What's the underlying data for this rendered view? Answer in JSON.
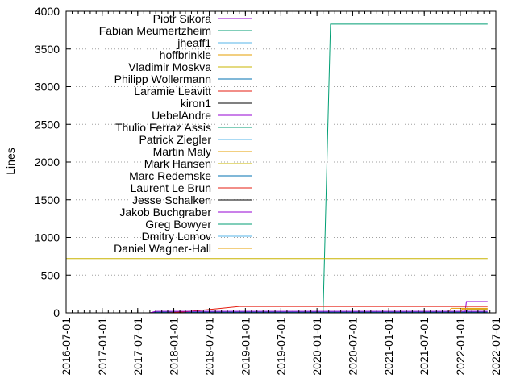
{
  "chart_data": {
    "type": "line",
    "title": "",
    "xlabel": "",
    "ylabel": "Lines",
    "ylim": [
      0,
      4000
    ],
    "xlim": [
      "2016-07-01",
      "2022-07-01"
    ],
    "yticks": [
      0,
      500,
      1000,
      1500,
      2000,
      2500,
      3000,
      3500,
      4000
    ],
    "xticks": [
      "2016-07-01",
      "2017-01-01",
      "2017-07-01",
      "2018-01-01",
      "2018-07-01",
      "2019-01-01",
      "2019-07-01",
      "2020-01-01",
      "2020-07-01",
      "2021-01-01",
      "2021-07-01",
      "2022-01-01",
      "2022-07-01"
    ],
    "grid": true,
    "legend_position": "top-left",
    "series": [
      {
        "name": "Piotr Sikora",
        "color": "#9400d3",
        "points": [
          [
            "2016-07-01",
            0
          ],
          [
            "2022-01-25",
            0
          ],
          [
            "2022-02-01",
            150
          ],
          [
            "2022-05-20",
            150
          ]
        ]
      },
      {
        "name": "Fabian Meumertzheim",
        "color": "#009e73",
        "points": [
          [
            "2016-07-01",
            0
          ],
          [
            "2020-02-01",
            0
          ],
          [
            "2020-03-10",
            3830
          ],
          [
            "2022-05-20",
            3830
          ]
        ]
      },
      {
        "name": "jheaff1",
        "color": "#56b4e9",
        "points": [
          [
            "2016-07-01",
            0
          ],
          [
            "2022-02-01",
            0
          ],
          [
            "2022-02-10",
            90
          ],
          [
            "2022-05-20",
            90
          ]
        ]
      },
      {
        "name": "hoffbrinkle",
        "color": "#e69f00",
        "points": [
          [
            "2016-07-01",
            0
          ],
          [
            "2021-11-01",
            0
          ],
          [
            "2021-11-15",
            60
          ],
          [
            "2022-05-20",
            60
          ]
        ]
      },
      {
        "name": "Vladimir Moskva",
        "color": "#c8b400",
        "points": [
          [
            "2016-07-01",
            720
          ],
          [
            "2022-05-20",
            720
          ]
        ]
      },
      {
        "name": "Philipp Wollermann",
        "color": "#0072b2",
        "points": [
          [
            "2016-07-01",
            0
          ],
          [
            "2017-09-01",
            0
          ],
          [
            "2017-10-01",
            10
          ],
          [
            "2022-05-20",
            10
          ]
        ]
      },
      {
        "name": "Laramie Leavitt",
        "color": "#e51e10",
        "points": [
          [
            "2016-07-01",
            0
          ],
          [
            "2017-12-01",
            0
          ],
          [
            "2018-03-01",
            15
          ],
          [
            "2018-09-01",
            60
          ],
          [
            "2018-12-01",
            85
          ],
          [
            "2022-05-20",
            85
          ]
        ]
      },
      {
        "name": "kiron1",
        "color": "#000000",
        "points": [
          [
            "2016-07-01",
            0
          ],
          [
            "2022-05-20",
            0
          ]
        ]
      },
      {
        "name": "UebelAndre",
        "color": "#9400d3",
        "points": [
          [
            "2016-07-01",
            0
          ],
          [
            "2022-05-20",
            0
          ]
        ]
      },
      {
        "name": "Thulio Ferraz Assis",
        "color": "#009e73",
        "points": [
          [
            "2016-07-01",
            0
          ],
          [
            "2022-02-01",
            0
          ],
          [
            "2022-02-10",
            40
          ],
          [
            "2022-05-20",
            40
          ]
        ]
      },
      {
        "name": "Patrick Ziegler",
        "color": "#56b4e9",
        "points": [
          [
            "2016-07-01",
            0
          ],
          [
            "2022-05-20",
            0
          ]
        ]
      },
      {
        "name": "Martin Maly",
        "color": "#e69f00",
        "points": [
          [
            "2016-07-01",
            0
          ],
          [
            "2022-01-01",
            0
          ],
          [
            "2022-01-10",
            50
          ],
          [
            "2022-05-20",
            50
          ]
        ]
      },
      {
        "name": "Mark Hansen",
        "color": "#c8b400",
        "points": [
          [
            "2016-07-01",
            0
          ],
          [
            "2022-05-20",
            0
          ]
        ]
      },
      {
        "name": "Marc Redemske",
        "color": "#0072b2",
        "points": [
          [
            "2016-07-01",
            0
          ],
          [
            "2022-05-20",
            0
          ]
        ]
      },
      {
        "name": "Laurent Le Brun",
        "color": "#e51e10",
        "points": [
          [
            "2016-07-01",
            0
          ],
          [
            "2022-05-20",
            0
          ]
        ]
      },
      {
        "name": "Jesse Schalken",
        "color": "#000000",
        "points": [
          [
            "2016-07-01",
            0
          ],
          [
            "2022-05-20",
            0
          ]
        ]
      },
      {
        "name": "Jakob Buchgraber",
        "color": "#9400d3",
        "points": [
          [
            "2016-07-01",
            0
          ],
          [
            "2017-09-01",
            0
          ],
          [
            "2017-10-01",
            20
          ],
          [
            "2022-05-20",
            20
          ]
        ]
      },
      {
        "name": "Greg Bowyer",
        "color": "#009e73",
        "points": [
          [
            "2016-07-01",
            0
          ],
          [
            "2022-05-20",
            0
          ]
        ]
      },
      {
        "name": "Dmitry Lomov",
        "color": "#56b4e9",
        "points": [
          [
            "2016-07-01",
            0
          ],
          [
            "2022-05-20",
            0
          ]
        ]
      },
      {
        "name": "Daniel Wagner-Hall",
        "color": "#e69f00",
        "points": [
          [
            "2016-07-01",
            0
          ],
          [
            "2022-05-20",
            0
          ]
        ]
      }
    ]
  }
}
